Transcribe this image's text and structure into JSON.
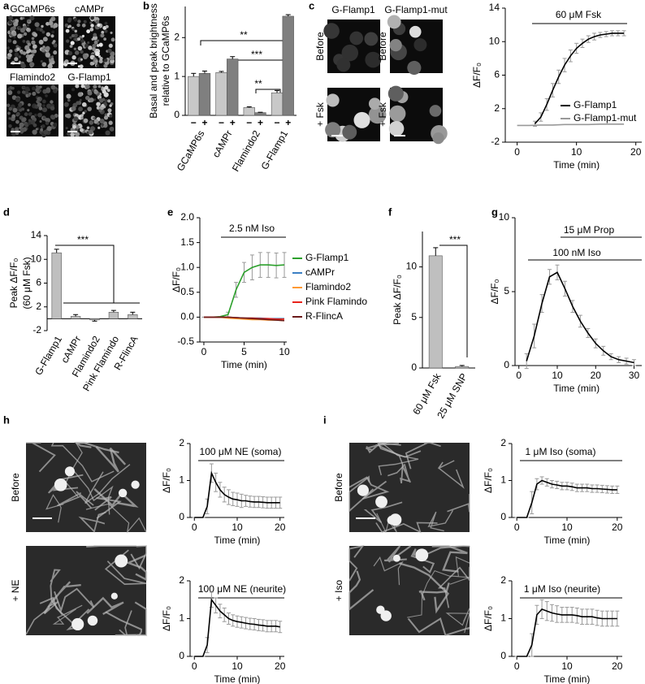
{
  "panel_labels": [
    "a",
    "b",
    "c",
    "d",
    "e",
    "f",
    "g",
    "h",
    "i"
  ],
  "images": {
    "a": [
      "GCaMP6s",
      "cAMPr",
      "Flamindo2",
      "G-Flamp1"
    ],
    "c": {
      "columns": [
        "G-Flamp1",
        "G-Flamp1-mut"
      ],
      "rows": [
        "Before",
        "+ Fsk"
      ]
    },
    "h": [
      "Before",
      "+ NE"
    ],
    "i": [
      "Before",
      "+ Iso"
    ]
  },
  "chart_data": [
    {
      "type": "bar",
      "ylabel": [
        "Basal and peak brightness",
        "relative to GCaMP6s"
      ],
      "categories": [
        "GCaMP6s",
        "cAMPr",
        "Flamindo2",
        "G-Flamp1"
      ],
      "series": [
        {
          "name": "−",
          "color": "#c8c8c8",
          "values": [
            1.0,
            1.1,
            0.2,
            0.58
          ],
          "errors": [
            0.08,
            0.03,
            0.02,
            0.06
          ]
        },
        {
          "name": "+",
          "color": "#7f7f7f",
          "values": [
            1.08,
            1.45,
            0.07,
            2.55
          ],
          "errors": [
            0.06,
            0.06,
            0.01,
            0.04
          ]
        }
      ],
      "ylim": [
        0,
        2.8
      ],
      "yticks": [
        0,
        1,
        2
      ],
      "annotations": [
        "**",
        "***",
        "**"
      ]
    },
    {
      "type": "line",
      "title": "60 μM Fsk",
      "xlabel": "Time (min)",
      "ylabel": "ΔF/F₀",
      "xlim": [
        -2,
        21
      ],
      "xticks": [
        0,
        10,
        20
      ],
      "ylim": [
        -2,
        14
      ],
      "yticks": [
        -2,
        2,
        6,
        10,
        14
      ],
      "series": [
        {
          "name": "G-Flamp1",
          "color": "#000000",
          "x": [
            3,
            4,
            5,
            6,
            7,
            8,
            9,
            10,
            11,
            12,
            13,
            14,
            15,
            16,
            17,
            18
          ],
          "values": [
            0.2,
            1,
            2.5,
            4.2,
            5.8,
            7.2,
            8.3,
            9.2,
            9.8,
            10.3,
            10.6,
            10.8,
            10.9,
            11,
            11,
            11
          ],
          "errors": [
            0.3,
            0.5,
            0.7,
            0.8,
            0.8,
            0.8,
            0.7,
            0.6,
            0.5,
            0.4,
            0.4,
            0.3,
            0.3,
            0.3,
            0.3,
            0.3
          ]
        },
        {
          "name": "G-Flamp1-mut",
          "color": "#999999",
          "x": [
            0,
            2,
            4,
            6,
            8,
            10,
            12,
            14,
            16,
            18
          ],
          "values": [
            0,
            0,
            0.05,
            0.05,
            0.1,
            0.1,
            0.1,
            0.15,
            0.15,
            0.15
          ]
        }
      ]
    },
    {
      "type": "bar",
      "ylabel": [
        "Peak ΔF/F₀",
        "(60 μM Fsk)"
      ],
      "categories": [
        "G-Flamp1",
        "cAMPr",
        "Flamindo2",
        "Pink Flamindo",
        "R-FlincA"
      ],
      "values": [
        11.1,
        0.4,
        -0.2,
        1.1,
        0.7
      ],
      "errors": [
        0.6,
        0.3,
        0.2,
        0.3,
        0.4
      ],
      "color": "#bfbfbf",
      "ylim": [
        -2,
        14
      ],
      "yticks": [
        -2,
        2,
        6,
        10,
        14
      ],
      "annotations": [
        "***"
      ]
    },
    {
      "type": "line",
      "title": "2.5 nM Iso",
      "xlabel": "Time (min)",
      "ylabel": "ΔF/F₀",
      "xlim": [
        -0.5,
        10.3
      ],
      "xticks": [
        0,
        5,
        10
      ],
      "ylim": [
        -0.5,
        2.0
      ],
      "yticks": [
        {
          "value": -0.5,
          "label": "-0.5"
        },
        {
          "value": 0,
          "label": "0.0"
        },
        {
          "value": 0.5,
          "label": "0.5"
        },
        {
          "value": 1,
          "label": "1.0"
        },
        {
          "value": 1.5,
          "label": "1.5"
        },
        {
          "value": 2,
          "label": "2.0"
        }
      ],
      "series": [
        {
          "name": "G-Flamp1",
          "color": "#2ca02c",
          "x": [
            0,
            1,
            2,
            3,
            4,
            5,
            6,
            7,
            8,
            9,
            10
          ],
          "values": [
            0,
            0,
            0.01,
            0.05,
            0.55,
            0.9,
            1.0,
            1.05,
            1.05,
            1.04,
            1.05
          ],
          "errors": [
            0,
            0,
            0,
            0.05,
            0.15,
            0.2,
            0.25,
            0.25,
            0.25,
            0.25,
            0.25
          ]
        },
        {
          "name": "cAMPr",
          "color": "#3b7fc4",
          "x": [
            0,
            1,
            2,
            3,
            4,
            5,
            6,
            7,
            8,
            9,
            10
          ],
          "values": [
            0,
            0,
            0,
            -0.01,
            -0.01,
            -0.02,
            -0.02,
            -0.02,
            -0.03,
            -0.03,
            -0.03
          ]
        },
        {
          "name": "Flamindo2",
          "color": "#ff9933",
          "x": [
            0,
            1,
            2,
            3,
            4,
            5,
            6,
            7,
            8,
            9,
            10
          ],
          "values": [
            0,
            0,
            0,
            -0.02,
            -0.03,
            -0.04,
            -0.05,
            -0.05,
            -0.06,
            -0.06,
            -0.07
          ]
        },
        {
          "name": "Pink Flamindo",
          "color": "#e8231a",
          "x": [
            0,
            1,
            2,
            3,
            4,
            5,
            6,
            7,
            8,
            9,
            10
          ],
          "values": [
            0,
            0,
            0,
            0,
            -0.01,
            -0.02,
            -0.02,
            -0.03,
            -0.03,
            -0.04,
            -0.04
          ]
        },
        {
          "name": "R-FlincA",
          "color": "#6b1a1a",
          "x": [
            0,
            1,
            2,
            3,
            4,
            5,
            6,
            7,
            8,
            9,
            10
          ],
          "values": [
            0,
            0,
            0,
            0,
            -0.01,
            -0.02,
            -0.03,
            -0.04,
            -0.05,
            -0.06,
            -0.07
          ]
        }
      ]
    },
    {
      "type": "bar",
      "ylabel": [
        "Peak ΔF/F₀"
      ],
      "categories": [
        "60 μM Fsk",
        "25 μM SNP"
      ],
      "values": [
        11.1,
        0.15
      ],
      "errors": [
        0.8,
        0.1
      ],
      "color": "#bfbfbf",
      "ylim": [
        0,
        13.5
      ],
      "yticks": [
        0,
        5,
        10
      ],
      "annotations": [
        "***"
      ]
    },
    {
      "type": "line",
      "xlabel": "Time (min)",
      "ylabel": "ΔF/F₀",
      "annotations": [
        "15 μM Prop",
        "100 nM Iso"
      ],
      "xlim": [
        -1,
        32
      ],
      "xticks": [
        0,
        10,
        20,
        30
      ],
      "ylim": [
        0,
        10
      ],
      "yticks": [
        0,
        5,
        10
      ],
      "series": [
        {
          "color": "#000000",
          "x": [
            2,
            4,
            6,
            8,
            10,
            12,
            14,
            16,
            18,
            20,
            22,
            24,
            26,
            28,
            30
          ],
          "values": [
            0.3,
            2,
            4.2,
            6,
            6.3,
            5.2,
            4,
            3,
            2.2,
            1.5,
            1,
            0.6,
            0.4,
            0.3,
            0.2
          ],
          "errors": [
            0.5,
            0.8,
            0.6,
            0.5,
            0.5,
            0.5,
            0.4,
            0.4,
            0.3,
            0.3,
            0.3,
            0.2,
            0.2,
            0.2,
            0.2
          ]
        }
      ]
    },
    {
      "type": "line",
      "title": "100 μM NE (soma)",
      "xlabel": "Time (min)",
      "ylabel": "ΔF/F₀",
      "xlim": [
        -1,
        21
      ],
      "xticks": [
        0,
        10,
        20
      ],
      "ylim": [
        0,
        2
      ],
      "yticks": [
        0,
        1,
        2
      ],
      "series": [
        {
          "color": "#000000",
          "x": [
            0,
            1,
            2,
            3,
            4,
            5,
            6,
            7,
            8,
            9,
            10,
            11,
            12,
            13,
            14,
            15,
            16,
            17,
            18,
            19,
            20
          ],
          "values": [
            0,
            0,
            0,
            0.3,
            1.2,
            0.95,
            0.75,
            0.62,
            0.55,
            0.5,
            0.48,
            0.45,
            0.45,
            0.43,
            0.42,
            0.42,
            0.41,
            0.4,
            0.4,
            0.4,
            0.4
          ],
          "errors": [
            0,
            0,
            0,
            0.2,
            0.25,
            0.25,
            0.2,
            0.2,
            0.2,
            0.18,
            0.18,
            0.18,
            0.15,
            0.15,
            0.15,
            0.15,
            0.15,
            0.15,
            0.15,
            0.15,
            0.15
          ]
        }
      ]
    },
    {
      "type": "line",
      "title": "100 μM NE (neurite)",
      "xlabel": "Time (min)",
      "ylabel": "ΔF/F₀",
      "xlim": [
        -1,
        21
      ],
      "xticks": [
        0,
        10,
        20
      ],
      "ylim": [
        0,
        2
      ],
      "yticks": [
        0,
        1,
        2
      ],
      "series": [
        {
          "color": "#000000",
          "x": [
            0,
            1,
            2,
            3,
            4,
            5,
            6,
            7,
            8,
            9,
            10,
            11,
            12,
            13,
            14,
            15,
            16,
            17,
            18,
            19,
            20
          ],
          "values": [
            0,
            0,
            0,
            0.3,
            1.5,
            1.35,
            1.2,
            1.1,
            1.0,
            0.95,
            0.92,
            0.9,
            0.88,
            0.86,
            0.85,
            0.83,
            0.82,
            0.8,
            0.8,
            0.8,
            0.78
          ],
          "errors": [
            0,
            0,
            0,
            0.2,
            0.2,
            0.2,
            0.18,
            0.18,
            0.15,
            0.15,
            0.15,
            0.15,
            0.15,
            0.15,
            0.15,
            0.15,
            0.15,
            0.15,
            0.15,
            0.15,
            0.15
          ]
        }
      ]
    },
    {
      "type": "line",
      "title": "1 μM Iso (soma)",
      "xlabel": "Time (min)",
      "ylabel": "ΔF/F₀",
      "xlim": [
        -1,
        21
      ],
      "xticks": [
        0,
        10,
        20
      ],
      "ylim": [
        0,
        2
      ],
      "yticks": [
        0,
        1,
        2
      ],
      "series": [
        {
          "color": "#000000",
          "x": [
            0,
            1,
            2,
            3,
            4,
            5,
            6,
            7,
            8,
            9,
            10,
            11,
            12,
            13,
            14,
            15,
            16,
            17,
            18,
            19,
            20
          ],
          "values": [
            0,
            0,
            0,
            0.4,
            0.9,
            1.0,
            0.95,
            0.9,
            0.88,
            0.85,
            0.85,
            0.83,
            0.8,
            0.8,
            0.8,
            0.78,
            0.78,
            0.77,
            0.76,
            0.75,
            0.75
          ],
          "errors": [
            0,
            0,
            0,
            0.3,
            0.15,
            0.1,
            0.1,
            0.1,
            0.1,
            0.1,
            0.1,
            0.1,
            0.1,
            0.1,
            0.1,
            0.1,
            0.1,
            0.1,
            0.1,
            0.1,
            0.1
          ]
        }
      ]
    },
    {
      "type": "line",
      "title": "1 μM Iso (neurite)",
      "xlabel": "Time (min)",
      "ylabel": "ΔF/F₀",
      "xlim": [
        -1,
        21
      ],
      "xticks": [
        0,
        10,
        20
      ],
      "ylim": [
        0,
        2
      ],
      "yticks": [
        0,
        1,
        2
      ],
      "series": [
        {
          "color": "#000000",
          "x": [
            0,
            1,
            2,
            3,
            4,
            5,
            6,
            7,
            8,
            9,
            10,
            11,
            12,
            13,
            14,
            15,
            16,
            17,
            18,
            19,
            20
          ],
          "values": [
            0,
            0,
            0,
            0.3,
            1.1,
            1.25,
            1.2,
            1.15,
            1.12,
            1.1,
            1.1,
            1.1,
            1.08,
            1.05,
            1.05,
            1.05,
            1.02,
            1.0,
            1.0,
            1.0,
            1.0
          ],
          "errors": [
            0,
            0,
            0,
            0.3,
            0.25,
            0.25,
            0.25,
            0.22,
            0.22,
            0.2,
            0.2,
            0.2,
            0.2,
            0.2,
            0.2,
            0.2,
            0.2,
            0.2,
            0.2,
            0.2,
            0.2
          ]
        }
      ]
    }
  ]
}
